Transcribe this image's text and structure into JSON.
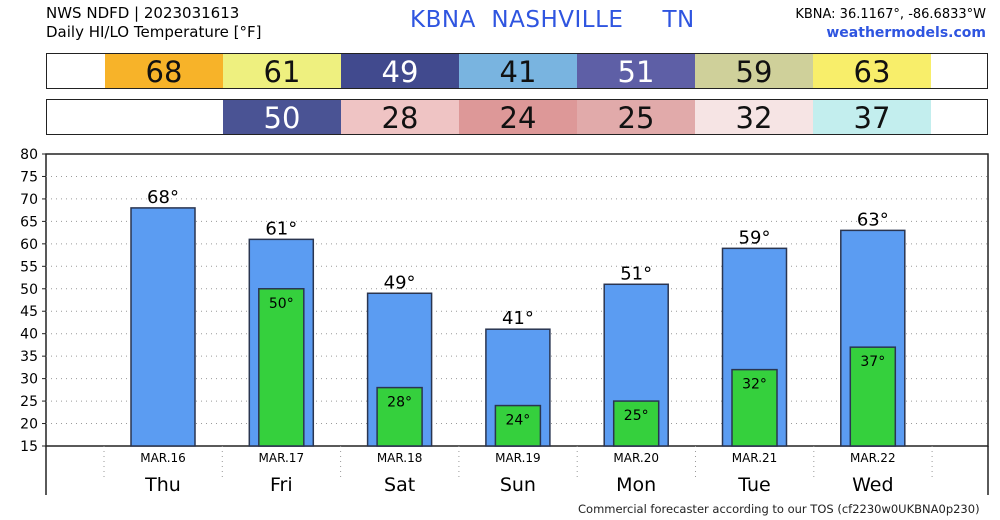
{
  "header": {
    "line1": "NWS NDFD | 2023031613",
    "line2": "Daily HI/LO Temperature [°F]",
    "title": "KBNA  NASHVILLE     TN",
    "coords": "KBNA: 36.1167°, -86.6833°W",
    "site": "weathermodels.com"
  },
  "strips": {
    "hi": [
      {
        "text": "68",
        "color": "#f7b329",
        "fg": "#111111"
      },
      {
        "text": "61",
        "color": "#eef07f",
        "fg": "#111111"
      },
      {
        "text": "49",
        "color": "#414a8e",
        "fg": "#ffffff"
      },
      {
        "text": "41",
        "color": "#79b4e0",
        "fg": "#111111"
      },
      {
        "text": "51",
        "color": "#5e5fa6",
        "fg": "#ffffff"
      },
      {
        "text": "59",
        "color": "#cfd09a",
        "fg": "#111111"
      },
      {
        "text": "63",
        "color": "#f8ee6a",
        "fg": "#111111"
      }
    ],
    "lo": [
      {
        "text": "",
        "color": "#ffffff",
        "fg": "#111111"
      },
      {
        "text": "50",
        "color": "#4a5394",
        "fg": "#ffffff"
      },
      {
        "text": "28",
        "color": "#efc4c4",
        "fg": "#111111"
      },
      {
        "text": "24",
        "color": "#dd9898",
        "fg": "#111111"
      },
      {
        "text": "25",
        "color": "#e1aaaa",
        "fg": "#111111"
      },
      {
        "text": "32",
        "color": "#f6e4e4",
        "fg": "#111111"
      },
      {
        "text": "37",
        "color": "#c3eeee",
        "fg": "#111111"
      }
    ]
  },
  "chart_data": {
    "type": "bar",
    "categories": [
      "MAR.16",
      "MAR.17",
      "MAR.18",
      "MAR.19",
      "MAR.20",
      "MAR.21",
      "MAR.22"
    ],
    "days": [
      "Thu",
      "Fri",
      "Sat",
      "Sun",
      "Mon",
      "Tue",
      "Wed"
    ],
    "series": [
      {
        "values": [
          68,
          61,
          49,
          41,
          51,
          59,
          63
        ],
        "labels": [
          "68°",
          "61°",
          "49°",
          "41°",
          "51°",
          "59°",
          "63°"
        ],
        "color": "#5b9cf2"
      },
      {
        "values": [
          null,
          50,
          28,
          24,
          25,
          32,
          37
        ],
        "labels": [
          "",
          "50°",
          "28°",
          "24°",
          "25°",
          "32°",
          "37°"
        ],
        "color": "#35d03d"
      }
    ],
    "ylim": [
      15,
      80
    ],
    "yticks": [
      "80",
      "75",
      "70",
      "65",
      "60",
      "55",
      "50",
      "45",
      "40",
      "35",
      "30",
      "25",
      "20",
      "15"
    ],
    "grid": true
  },
  "footer": "Commercial forecaster according to our TOS (cf2230w0UKBNA0p230)"
}
